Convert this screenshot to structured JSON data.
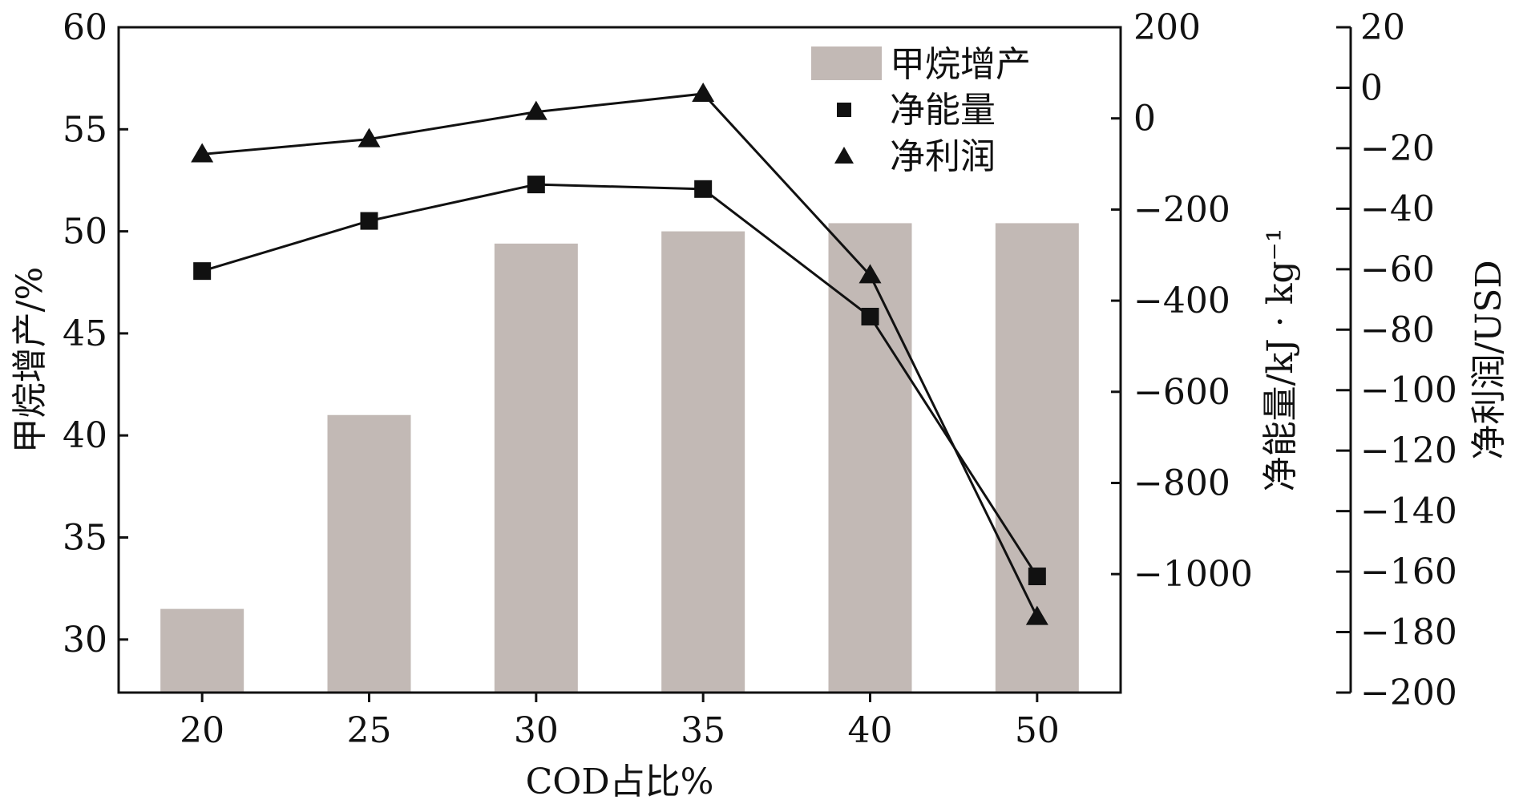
{
  "chart_data": {
    "type": "bar+line",
    "categories": [
      "20",
      "25",
      "30",
      "35",
      "40",
      "50"
    ],
    "xlabel": "COD占比%",
    "left_axis": {
      "label": "甲烷增产/%",
      "range": [
        27.4,
        60
      ],
      "ticks": [
        "30",
        "35",
        "40",
        "45",
        "50",
        "55",
        "60"
      ]
    },
    "right_axis_1": {
      "label": "净能量/kJ · kg⁻¹",
      "range": [
        -1260,
        200
      ],
      "ticks": [
        "200",
        "0",
        "−200",
        "−400",
        "−600",
        "−800",
        "−1000"
      ]
    },
    "right_axis_2": {
      "label": "净利润/USD",
      "range": [
        -200,
        20
      ],
      "ticks": [
        "20",
        "0",
        "−20",
        "−40",
        "−60",
        "−80",
        "−100",
        "−120",
        "−140",
        "−160",
        "−180",
        "−200"
      ]
    },
    "series": [
      {
        "name": "甲烷增产",
        "kind": "bar",
        "axis": "left",
        "color": "#c2b9b5",
        "values": [
          31.5,
          41.0,
          49.4,
          50.0,
          50.4,
          50.4
        ]
      },
      {
        "name": "净能量",
        "kind": "line",
        "marker": "square",
        "axis": "right_1",
        "color": "#111111",
        "values": [
          -335,
          -225,
          -145,
          -155,
          -435,
          -1005
        ]
      },
      {
        "name": "净利润",
        "kind": "line",
        "marker": "triangle",
        "axis": "right_2",
        "color": "#111111",
        "values": [
          -22,
          -17,
          -8,
          -2,
          -62,
          -175
        ]
      }
    ],
    "legend": {
      "position": "top-right",
      "entries": [
        "甲烷增产",
        "净能量",
        "净利润"
      ]
    }
  }
}
